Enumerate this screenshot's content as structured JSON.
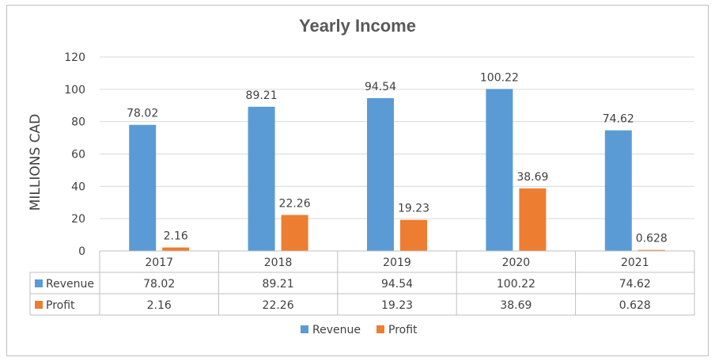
{
  "chart_data": {
    "type": "bar",
    "title": "Yearly Income",
    "xlabel": "",
    "ylabel": "MILLIONS CAD",
    "ylim": [
      0,
      120
    ],
    "yticks": [
      0,
      20,
      40,
      60,
      80,
      100,
      120
    ],
    "grid": true,
    "legend_position": "bottom",
    "categories": [
      "2017",
      "2018",
      "2019",
      "2020",
      "2021"
    ],
    "series": [
      {
        "name": "Revenue",
        "color": "#5b9bd5",
        "values": [
          78.02,
          89.21,
          94.54,
          100.22,
          74.62
        ],
        "labels": [
          "78.02",
          "89.21",
          "94.54",
          "100.22",
          "74.62"
        ]
      },
      {
        "name": "Profit",
        "color": "#ed7d31",
        "values": [
          2.16,
          22.26,
          19.23,
          38.69,
          0.628
        ],
        "labels": [
          "2.16",
          "22.26",
          "19.23",
          "38.69",
          "0.628"
        ]
      }
    ],
    "data_table": true
  }
}
